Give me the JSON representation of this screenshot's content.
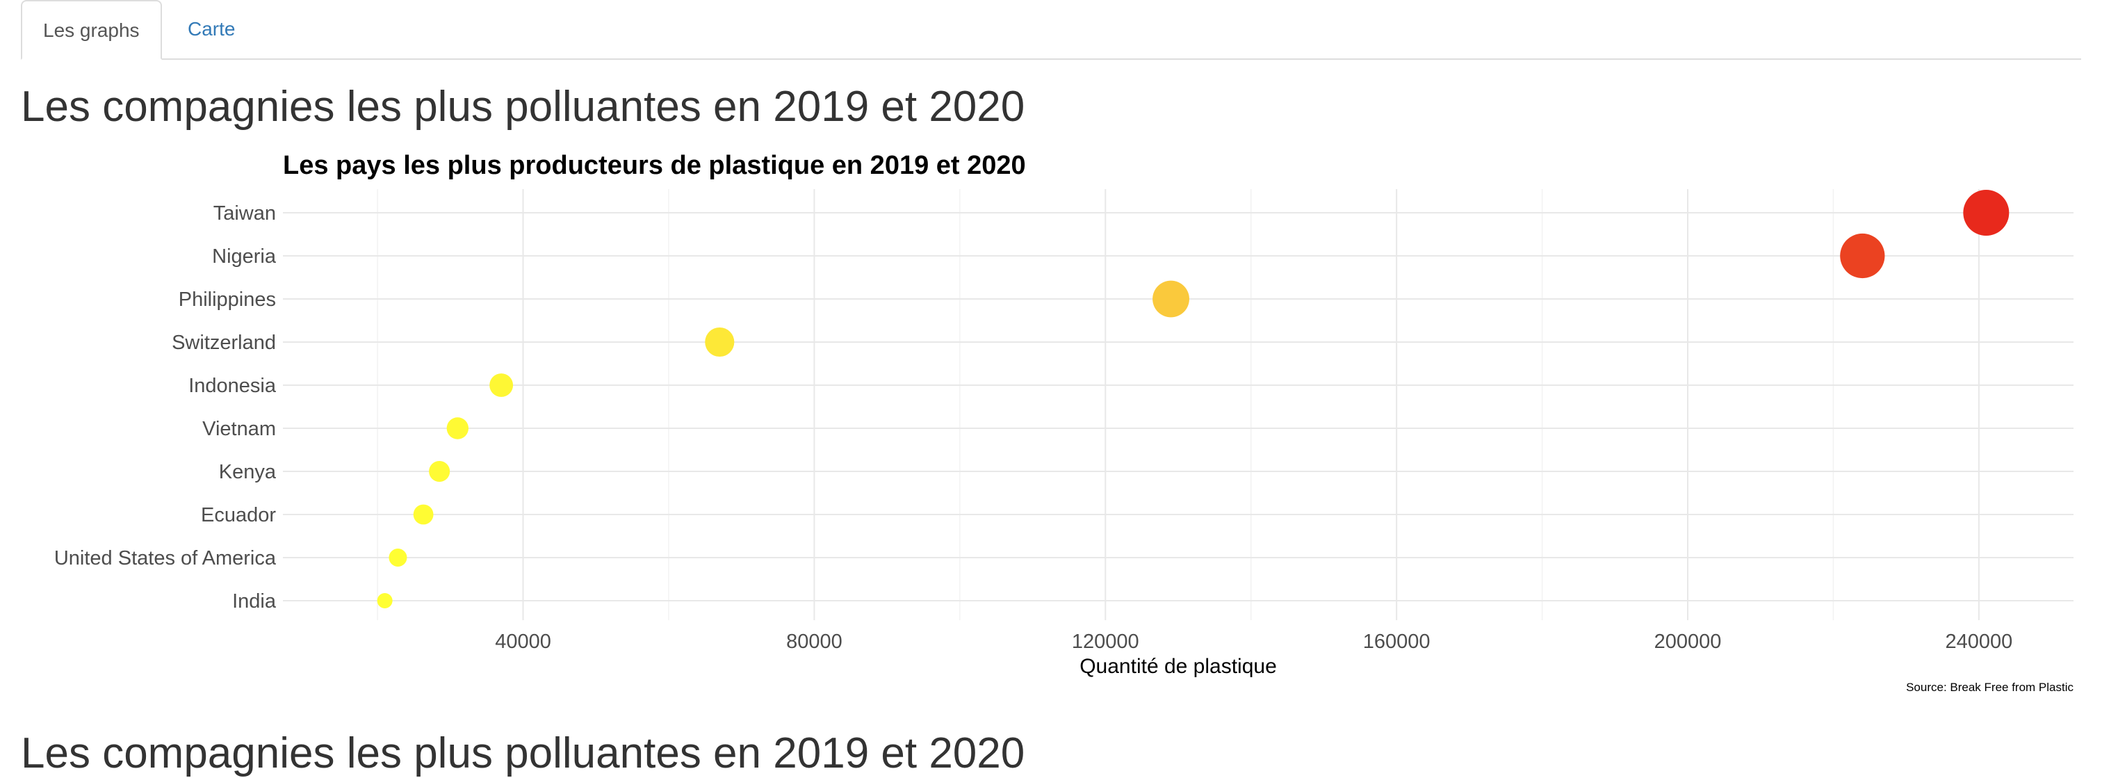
{
  "tabs": [
    {
      "label": "Les graphs",
      "active": true
    },
    {
      "label": "Carte",
      "active": false
    }
  ],
  "section_title": "Les compagnies les plus polluantes en 2019 et 2020",
  "section_title_2": "Les compagnies les plus polluantes en 2019 et 2020",
  "colors": {
    "tab_link": "#337ab7",
    "low": "#ffff33",
    "high": "#e8291c"
  },
  "chart_data": {
    "type": "scatter",
    "title": "Les pays les plus producteurs de plastique en 2019 et 2020",
    "xlabel": "Quantité de plastique",
    "ylabel": "",
    "caption": "Source: Break Free from Plastic",
    "xlim": [
      7000,
      253000
    ],
    "x_ticks": [
      40000,
      80000,
      120000,
      160000,
      200000,
      240000
    ],
    "x_tick_labels": [
      "40000",
      "80000",
      "120000",
      "160000",
      "200000",
      "240000"
    ],
    "grid": true,
    "legend": "none",
    "categories": [
      "Taiwan",
      "Nigeria",
      "Philippines",
      "Switzerland",
      "Indonesia",
      "Vietnam",
      "Kenya",
      "Ecuador",
      "United States of America",
      "India"
    ],
    "values": [
      241000,
      224000,
      129000,
      67000,
      37000,
      31000,
      28500,
      26300,
      22800,
      21000
    ]
  }
}
